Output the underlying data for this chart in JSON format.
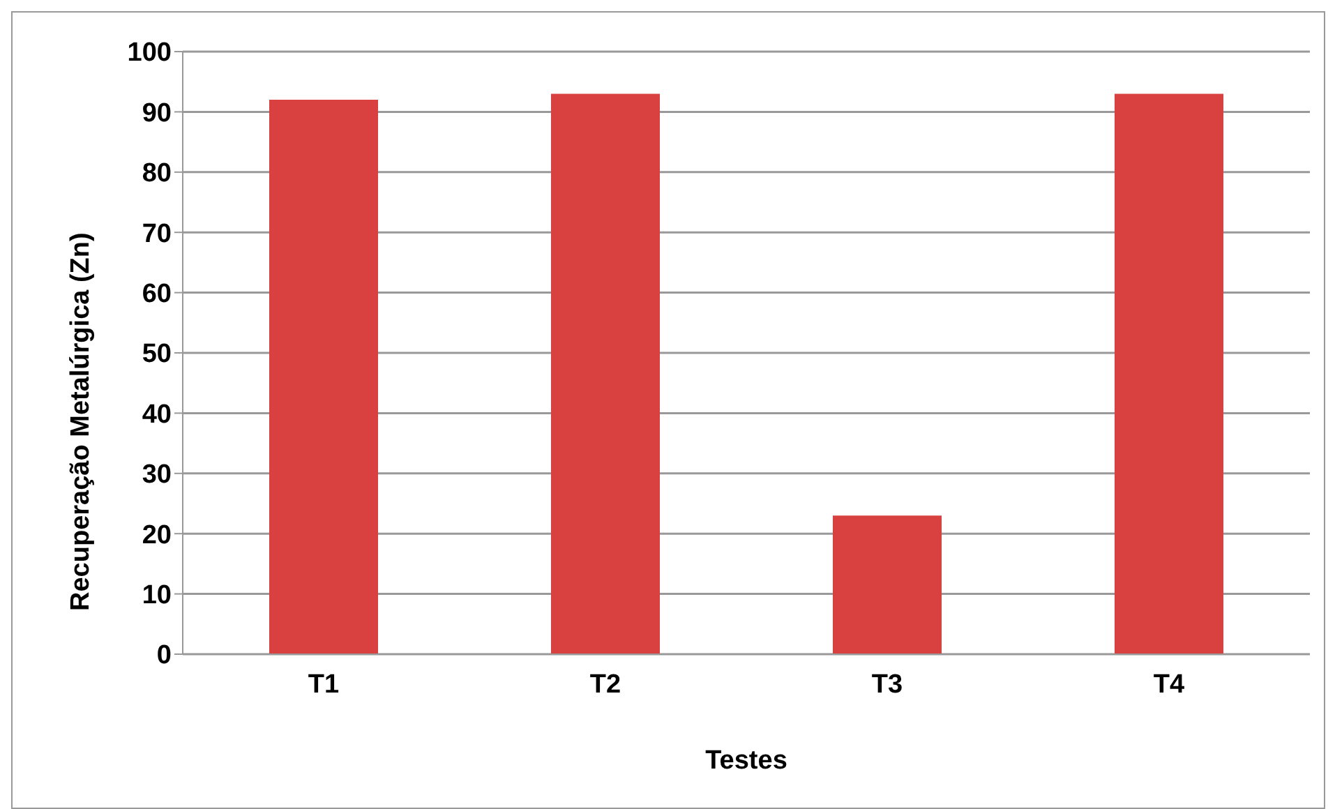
{
  "chart_data": {
    "type": "bar",
    "xlabel": "Testes",
    "ylabel": "Recuperação  Metalúrgica  (Zn)",
    "categories": [
      "T1",
      "T2",
      "T3",
      "T4"
    ],
    "values": [
      92,
      93,
      23,
      93
    ],
    "color": "#d94040",
    "ylim": [
      0,
      100
    ],
    "yticks": [
      0,
      10,
      20,
      30,
      40,
      50,
      60,
      70,
      80,
      90,
      100
    ],
    "grid": "y"
  }
}
